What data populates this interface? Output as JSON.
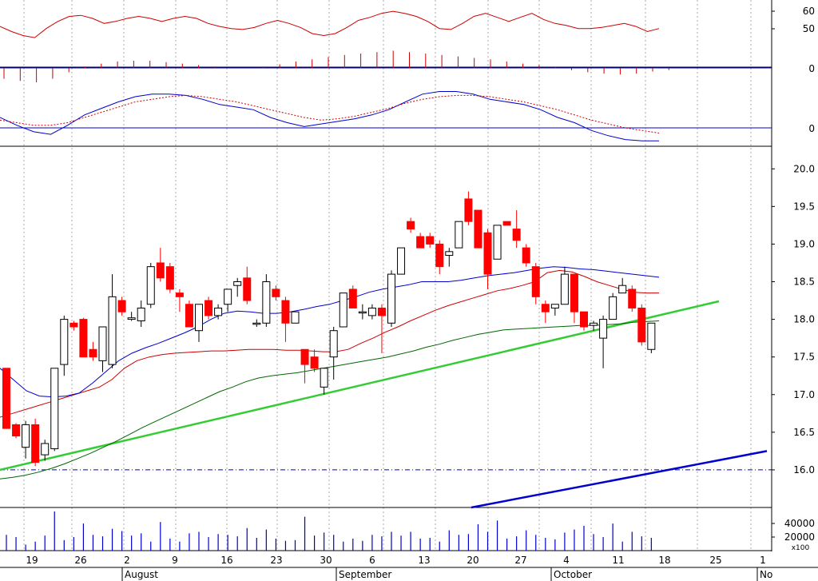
{
  "chart_data": {
    "type": "candlestick",
    "price_ylim": [
      15.5,
      20.3
    ],
    "price_ticks": [
      "20.0",
      "19.5",
      "19.0",
      "18.5",
      "18.0",
      "17.5",
      "17.0",
      "16.5",
      "16.0"
    ],
    "rsi_ticks": [
      "60",
      "50"
    ],
    "hist_ticks": [
      "0"
    ],
    "macd_ticks": [
      "0"
    ],
    "volume_ticks": [
      "40000",
      "20000"
    ],
    "volume_unit_label": "x100",
    "day_labels": [
      "19",
      "26",
      "2",
      "9",
      "16",
      "23",
      "30",
      "6",
      "13",
      "20",
      "27",
      "4",
      "11",
      "18",
      "25",
      "1"
    ],
    "month_labels": [
      "August",
      "September",
      "October",
      "No"
    ],
    "colors": {
      "up_body": "#ffffff",
      "down_body": "#ff0000",
      "outline": "#000000",
      "ma_short": "#cc0000",
      "ma_mid": "#0000cc",
      "ma_long": "#006600",
      "trend": "#33cc33",
      "support": "#0000cc"
    },
    "candles": [
      {
        "o": 17.35,
        "h": 17.35,
        "l": 16.55,
        "c": 16.55
      },
      {
        "o": 16.6,
        "h": 16.62,
        "l": 16.42,
        "c": 16.45
      },
      {
        "o": 16.3,
        "h": 16.65,
        "l": 16.15,
        "c": 16.6
      },
      {
        "o": 16.6,
        "h": 16.68,
        "l": 16.05,
        "c": 16.1
      },
      {
        "o": 16.2,
        "h": 16.4,
        "l": 16.12,
        "c": 16.35
      },
      {
        "o": 16.28,
        "h": 17.35,
        "l": 16.25,
        "c": 17.35
      },
      {
        "o": 17.4,
        "h": 18.05,
        "l": 17.25,
        "c": 18.0
      },
      {
        "o": 17.95,
        "h": 17.98,
        "l": 17.85,
        "c": 17.9
      },
      {
        "o": 18.0,
        "h": 18.02,
        "l": 17.5,
        "c": 17.5
      },
      {
        "o": 17.6,
        "h": 17.7,
        "l": 17.45,
        "c": 17.5
      },
      {
        "o": 17.45,
        "h": 17.9,
        "l": 17.3,
        "c": 17.9
      },
      {
        "o": 17.4,
        "h": 18.6,
        "l": 17.35,
        "c": 18.3
      },
      {
        "o": 18.25,
        "h": 18.3,
        "l": 18.05,
        "c": 18.1
      },
      {
        "o": 18.0,
        "h": 18.1,
        "l": 17.98,
        "c": 18.02
      },
      {
        "o": 17.98,
        "h": 18.25,
        "l": 17.9,
        "c": 18.15
      },
      {
        "o": 18.2,
        "h": 18.75,
        "l": 18.15,
        "c": 18.7
      },
      {
        "o": 18.75,
        "h": 18.95,
        "l": 18.5,
        "c": 18.55
      },
      {
        "o": 18.7,
        "h": 18.75,
        "l": 18.35,
        "c": 18.4
      },
      {
        "o": 18.35,
        "h": 18.4,
        "l": 18.1,
        "c": 18.3
      },
      {
        "o": 18.2,
        "h": 18.25,
        "l": 17.9,
        "c": 17.9
      },
      {
        "o": 17.85,
        "h": 18.2,
        "l": 17.7,
        "c": 18.2
      },
      {
        "o": 18.25,
        "h": 18.3,
        "l": 18.0,
        "c": 18.05
      },
      {
        "o": 18.05,
        "h": 18.2,
        "l": 18.0,
        "c": 18.15
      },
      {
        "o": 18.2,
        "h": 18.4,
        "l": 18.1,
        "c": 18.4
      },
      {
        "o": 18.45,
        "h": 18.55,
        "l": 18.3,
        "c": 18.5
      },
      {
        "o": 18.55,
        "h": 18.7,
        "l": 18.2,
        "c": 18.25
      },
      {
        "o": 17.95,
        "h": 18.0,
        "l": 17.9,
        "c": 17.95
      },
      {
        "o": 17.95,
        "h": 18.6,
        "l": 17.9,
        "c": 18.5
      },
      {
        "o": 18.4,
        "h": 18.45,
        "l": 18.25,
        "c": 18.3
      },
      {
        "o": 18.25,
        "h": 18.3,
        "l": 17.7,
        "c": 17.95
      },
      {
        "o": 17.95,
        "h": 18.1,
        "l": 17.95,
        "c": 18.1
      },
      {
        "o": 17.6,
        "h": 17.6,
        "l": 17.15,
        "c": 17.4
      },
      {
        "o": 17.5,
        "h": 17.6,
        "l": 17.3,
        "c": 17.35
      },
      {
        "o": 17.1,
        "h": 17.35,
        "l": 17.0,
        "c": 17.35
      },
      {
        "o": 17.5,
        "h": 17.9,
        "l": 17.2,
        "c": 17.85
      },
      {
        "o": 17.9,
        "h": 18.35,
        "l": 17.9,
        "c": 18.35
      },
      {
        "o": 18.4,
        "h": 18.45,
        "l": 18.15,
        "c": 18.15
      },
      {
        "o": 18.1,
        "h": 18.2,
        "l": 18.0,
        "c": 18.1
      },
      {
        "o": 18.05,
        "h": 18.2,
        "l": 18.0,
        "c": 18.15
      },
      {
        "o": 18.15,
        "h": 18.2,
        "l": 17.55,
        "c": 18.05
      },
      {
        "o": 17.95,
        "h": 18.65,
        "l": 17.9,
        "c": 18.6
      },
      {
        "o": 18.6,
        "h": 18.95,
        "l": 18.6,
        "c": 18.95
      },
      {
        "o": 19.3,
        "h": 19.35,
        "l": 19.15,
        "c": 19.2
      },
      {
        "o": 19.1,
        "h": 19.15,
        "l": 18.95,
        "c": 18.95
      },
      {
        "o": 19.1,
        "h": 19.15,
        "l": 18.95,
        "c": 19.0
      },
      {
        "o": 19.0,
        "h": 19.05,
        "l": 18.6,
        "c": 18.7
      },
      {
        "o": 18.85,
        "h": 18.95,
        "l": 18.7,
        "c": 18.9
      },
      {
        "o": 18.95,
        "h": 19.3,
        "l": 18.95,
        "c": 19.3
      },
      {
        "o": 19.6,
        "h": 19.7,
        "l": 19.25,
        "c": 19.3
      },
      {
        "o": 19.45,
        "h": 19.45,
        "l": 18.95,
        "c": 18.95
      },
      {
        "o": 19.15,
        "h": 19.2,
        "l": 18.4,
        "c": 18.6
      },
      {
        "o": 18.8,
        "h": 19.25,
        "l": 18.8,
        "c": 19.25
      },
      {
        "o": 19.3,
        "h": 19.3,
        "l": 19.25,
        "c": 19.25
      },
      {
        "o": 19.2,
        "h": 19.45,
        "l": 18.95,
        "c": 19.05
      },
      {
        "o": 18.95,
        "h": 19.0,
        "l": 18.7,
        "c": 18.75
      },
      {
        "o": 18.7,
        "h": 18.75,
        "l": 18.2,
        "c": 18.3
      },
      {
        "o": 18.2,
        "h": 18.25,
        "l": 17.95,
        "c": 18.1
      },
      {
        "o": 18.15,
        "h": 18.2,
        "l": 18.05,
        "c": 18.2
      },
      {
        "o": 18.2,
        "h": 18.7,
        "l": 18.2,
        "c": 18.6
      },
      {
        "o": 18.6,
        "h": 18.6,
        "l": 17.95,
        "c": 18.1
      },
      {
        "o": 18.1,
        "h": 18.1,
        "l": 17.85,
        "c": 17.9
      },
      {
        "o": 17.92,
        "h": 17.98,
        "l": 17.85,
        "c": 17.95
      },
      {
        "o": 17.75,
        "h": 18.05,
        "l": 17.35,
        "c": 18.0
      },
      {
        "o": 18.0,
        "h": 18.35,
        "l": 18.0,
        "c": 18.3
      },
      {
        "o": 18.35,
        "h": 18.55,
        "l": 18.35,
        "c": 18.45
      },
      {
        "o": 18.4,
        "h": 18.45,
        "l": 18.1,
        "c": 18.15
      },
      {
        "o": 18.15,
        "h": 18.2,
        "l": 17.65,
        "c": 17.7
      },
      {
        "o": 17.6,
        "h": 17.95,
        "l": 17.55,
        "c": 17.95
      }
    ],
    "ma_short": [
      16.7,
      16.75,
      16.8,
      16.85,
      16.9,
      16.95,
      17.0,
      17.05,
      17.1,
      17.2,
      17.35,
      17.45,
      17.5,
      17.53,
      17.55,
      17.56,
      17.57,
      17.58,
      17.58,
      17.59,
      17.6,
      17.6,
      17.6,
      17.59,
      17.59,
      17.58,
      17.57,
      17.57,
      17.6,
      17.68,
      17.75,
      17.83,
      17.9,
      17.98,
      18.05,
      18.12,
      18.18,
      18.23,
      18.28,
      18.33,
      18.38,
      18.41,
      18.45,
      18.5,
      18.62,
      18.65,
      18.63,
      18.57,
      18.5,
      18.45,
      18.4,
      18.36,
      18.35,
      18.35
    ],
    "ma_mid": [
      17.35,
      17.2,
      17.05,
      16.98,
      16.97,
      16.98,
      17.02,
      17.15,
      17.3,
      17.45,
      17.55,
      17.62,
      17.68,
      17.75,
      17.82,
      17.9,
      18.0,
      18.08,
      18.11,
      18.1,
      18.08,
      18.08,
      18.1,
      18.13,
      18.17,
      18.2,
      18.25,
      18.3,
      18.36,
      18.4,
      18.43,
      18.46,
      18.5,
      18.5,
      18.5,
      18.52,
      18.55,
      18.58,
      18.6,
      18.62,
      18.65,
      18.68,
      18.7,
      18.69,
      18.67,
      18.66,
      18.64,
      18.62,
      18.6,
      18.58,
      18.56
    ],
    "ma_long": [
      15.88,
      15.9,
      15.93,
      15.97,
      16.02,
      16.08,
      16.15,
      16.22,
      16.3,
      16.38,
      16.47,
      16.56,
      16.64,
      16.72,
      16.8,
      16.88,
      16.96,
      17.04,
      17.1,
      17.17,
      17.22,
      17.25,
      17.27,
      17.29,
      17.32,
      17.35,
      17.38,
      17.41,
      17.44,
      17.47,
      17.5,
      17.54,
      17.58,
      17.63,
      17.67,
      17.72,
      17.76,
      17.8,
      17.83,
      17.86,
      17.87,
      17.88,
      17.89,
      17.9,
      17.91,
      17.92,
      17.92,
      17.93,
      17.94,
      17.96,
      17.97,
      17.98
    ],
    "trend_line": [
      [
        0,
        16.0
      ],
      [
        900,
        18.24
      ]
    ],
    "support_line": [
      [
        590,
        15.5
      ],
      [
        960,
        16.25
      ]
    ],
    "support_level": 16.0,
    "volume": [
      21,
      18,
      8,
      12,
      20,
      52,
      14,
      18,
      36,
      21,
      19,
      29,
      26,
      20,
      23,
      12,
      38,
      16,
      12,
      23,
      25,
      18,
      22,
      21,
      19,
      30,
      17,
      28,
      16,
      13,
      14,
      45,
      20,
      24,
      21,
      12,
      16,
      13,
      21,
      19,
      25,
      20,
      25,
      16,
      17,
      12,
      27,
      21,
      22,
      35,
      25,
      40,
      16,
      19,
      27,
      21,
      17,
      15,
      24,
      28,
      33,
      22,
      18,
      36,
      12,
      25,
      19,
      17
    ],
    "rsi_range": [
      20,
      80
    ],
    "rsi": [
      57,
      52,
      48,
      46,
      55,
      62,
      67,
      68,
      65,
      60,
      62,
      65,
      67,
      65,
      62,
      65,
      67,
      65,
      60,
      57,
      55,
      54,
      56,
      60,
      63,
      60,
      56,
      50,
      48,
      50,
      56,
      63,
      66,
      70,
      72,
      70,
      67,
      62,
      55,
      54,
      60,
      67,
      70,
      66,
      62,
      66,
      70,
      64,
      60,
      58,
      55,
      55,
      56,
      58,
      60,
      57,
      52,
      55
    ],
    "hist": [
      -1.5,
      -1.8,
      -2.0,
      -1.5,
      -0.6,
      0.2,
      0.6,
      0.9,
      1.0,
      1.0,
      0.8,
      0.6,
      0.4,
      0.2,
      0.0,
      0.0,
      0.2,
      0.5,
      0.9,
      1.2,
      1.5,
      1.8,
      2.0,
      2.2,
      2.4,
      2.2,
      2.0,
      1.8,
      1.6,
      1.4,
      1.2,
      0.9,
      0.6,
      0.4,
      0.1,
      -0.3,
      -0.6,
      -0.8,
      -0.9,
      -0.8,
      -0.5,
      -0.3
    ],
    "macd": [
      8,
      2,
      -3,
      -5,
      2,
      10,
      15,
      20,
      24,
      26,
      26,
      25,
      22,
      18,
      16,
      14,
      8,
      4,
      1,
      3,
      5,
      7,
      10,
      14,
      20,
      26,
      28,
      28,
      26,
      22,
      20,
      18,
      14,
      8,
      4,
      -2,
      -6,
      -9,
      -10,
      -10
    ],
    "macd_signal": [
      6,
      4,
      2,
      2,
      4,
      8,
      12,
      16,
      20,
      22,
      24,
      25,
      24,
      22,
      20,
      17,
      14,
      11,
      8,
      6,
      7,
      9,
      12,
      15,
      19,
      22,
      24,
      25,
      25,
      24,
      22,
      20,
      17,
      14,
      10,
      6,
      3,
      0,
      -2,
      -4
    ],
    "macd_range": [
      -20,
      40
    ]
  }
}
